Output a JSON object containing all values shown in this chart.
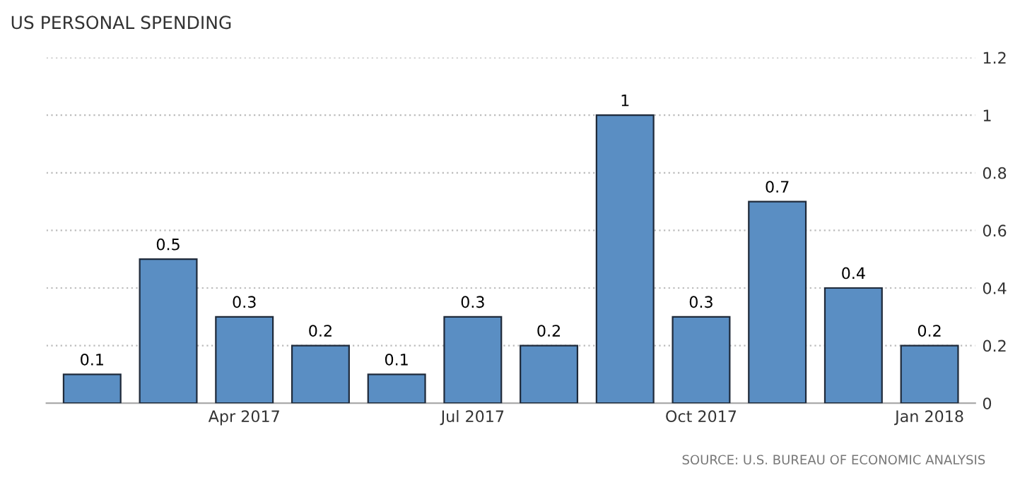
{
  "chart_data": {
    "type": "bar",
    "title": "US PERSONAL SPENDING",
    "categories": [
      null,
      null,
      "Apr 2017",
      null,
      null,
      "Jul 2017",
      null,
      null,
      "Oct 2017",
      null,
      null,
      "Jan 2018"
    ],
    "values": [
      0.1,
      0.5,
      0.3,
      0.2,
      0.1,
      0.3,
      0.2,
      1,
      0.3,
      0.7,
      0.4,
      0.2
    ],
    "color": "#5a8ec3",
    "ylim": [
      0,
      1.2
    ],
    "yticks": [
      0,
      0.2,
      0.4,
      0.6,
      0.8,
      1,
      1.2
    ],
    "grid": "y",
    "data_labels": true,
    "annotations": [
      "SOURCE: U.S. BUREAU OF ECONOMIC ANALYSIS"
    ]
  }
}
